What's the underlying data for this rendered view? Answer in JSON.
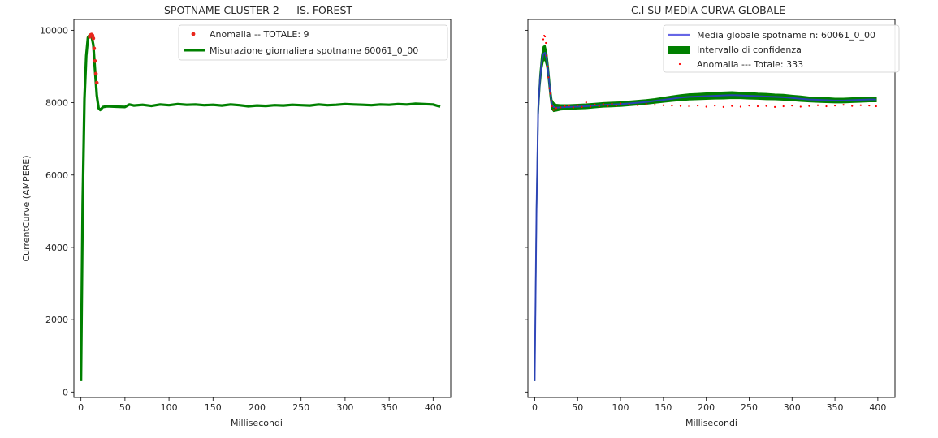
{
  "chart_data": [
    {
      "type": "line",
      "title": "SPOTNAME CLUSTER 2 --- IS. FOREST",
      "xlabel": "Millisecondi",
      "ylabel": "CurrentCurve (AMPERE)",
      "xlim": [
        -8,
        420
      ],
      "ylim": [
        -150,
        10300
      ],
      "xticks": [
        0,
        50,
        100,
        150,
        200,
        250,
        300,
        350,
        400
      ],
      "yticks": [
        0,
        2000,
        4000,
        6000,
        8000,
        10000
      ],
      "grid": false,
      "legend_position": "top-right",
      "series": [
        {
          "name": "Misurazione giornaliera spotname 60061_0_00",
          "kind": "line",
          "color": "#008000",
          "x": [
            0,
            2,
            4,
            6,
            8,
            10,
            12,
            14,
            16,
            18,
            20,
            22,
            25,
            30,
            40,
            50,
            55,
            60,
            70,
            80,
            90,
            100,
            110,
            120,
            130,
            140,
            150,
            160,
            170,
            180,
            190,
            200,
            210,
            220,
            230,
            240,
            250,
            260,
            270,
            280,
            290,
            300,
            310,
            320,
            330,
            340,
            350,
            360,
            370,
            380,
            390,
            400,
            408
          ],
          "y": [
            300,
            5200,
            8100,
            9300,
            9800,
            9870,
            9850,
            9600,
            8900,
            8200,
            7850,
            7800,
            7880,
            7900,
            7890,
            7880,
            7950,
            7920,
            7940,
            7910,
            7950,
            7930,
            7960,
            7940,
            7950,
            7930,
            7940,
            7920,
            7950,
            7930,
            7900,
            7920,
            7910,
            7930,
            7920,
            7940,
            7930,
            7920,
            7950,
            7930,
            7940,
            7960,
            7950,
            7940,
            7930,
            7950,
            7940,
            7960,
            7950,
            7970,
            7960,
            7950,
            7890
          ]
        },
        {
          "name": "Anomalia -- TOTALE: 9",
          "kind": "scatter",
          "color": "#e8261c",
          "x": [
            10,
            11,
            12,
            13,
            14,
            15,
            16,
            17,
            18
          ],
          "y": [
            9820,
            9870,
            9880,
            9860,
            9780,
            9500,
            9150,
            8800,
            8550
          ]
        }
      ]
    },
    {
      "type": "line",
      "title": "C.I SU MEDIA CURVA GLOBALE",
      "xlabel": "Millisecondi",
      "ylabel": "",
      "xlim": [
        -8,
        420
      ],
      "ylim": [
        -150,
        10300
      ],
      "xticks": [
        0,
        50,
        100,
        150,
        200,
        250,
        300,
        350,
        400
      ],
      "yticks": [
        0,
        2000,
        4000,
        6000,
        8000,
        10000
      ],
      "grid": false,
      "legend_position": "top-right",
      "series": [
        {
          "name": "Media globale spotname n: 60061_0_00",
          "kind": "line",
          "color": "#3333dd",
          "x": [
            0,
            2,
            4,
            6,
            8,
            10,
            12,
            14,
            16,
            18,
            20,
            22,
            25,
            30,
            40,
            50,
            60,
            70,
            80,
            90,
            100,
            110,
            120,
            130,
            140,
            150,
            160,
            170,
            180,
            190,
            200,
            210,
            220,
            230,
            240,
            250,
            260,
            270,
            280,
            290,
            300,
            310,
            320,
            330,
            340,
            350,
            360,
            370,
            380,
            390,
            398
          ],
          "y": [
            300,
            5000,
            7800,
            8600,
            9100,
            9350,
            9380,
            9200,
            8800,
            8300,
            7950,
            7880,
            7860,
            7870,
            7880,
            7890,
            7900,
            7920,
            7940,
            7950,
            7960,
            7980,
            8000,
            8020,
            8050,
            8080,
            8110,
            8140,
            8160,
            8170,
            8180,
            8190,
            8200,
            8210,
            8200,
            8190,
            8180,
            8170,
            8160,
            8150,
            8130,
            8110,
            8090,
            8080,
            8070,
            8060,
            8060,
            8070,
            8080,
            8090,
            8090
          ]
        },
        {
          "name": "Intervallo di confidenza",
          "kind": "band",
          "color": "#008000",
          "halfwidth": [
            0,
            120,
            150,
            170,
            190,
            200,
            200,
            190,
            170,
            150,
            130,
            120,
            90,
            70,
            60,
            60,
            60,
            60,
            60,
            60,
            60,
            60,
            60,
            60,
            60,
            65,
            70,
            75,
            80,
            80,
            85,
            85,
            90,
            90,
            85,
            85,
            80,
            80,
            75,
            75,
            70,
            70,
            65,
            65,
            65,
            60,
            60,
            60,
            60,
            60,
            60
          ]
        },
        {
          "name": "Anomalia --- Totale: 333",
          "kind": "scatter",
          "color": "#ff0000",
          "x": [
            10,
            11,
            12,
            13,
            14,
            15,
            16,
            17,
            18,
            19,
            20,
            22,
            25,
            30,
            35,
            40,
            45,
            50,
            55,
            60,
            65,
            70,
            75,
            80,
            85,
            90,
            95,
            100,
            110,
            120,
            130,
            140,
            150,
            160,
            170,
            180,
            190,
            200,
            210,
            220,
            230,
            240,
            250,
            260,
            270,
            280,
            290,
            300,
            310,
            320,
            330,
            340,
            350,
            360,
            370,
            380,
            390,
            398
          ],
          "y": [
            9750,
            9850,
            9830,
            9650,
            9300,
            9000,
            8700,
            8400,
            8250,
            8050,
            7900,
            7800,
            7850,
            7870,
            7900,
            7920,
            7870,
            7930,
            7880,
            8010,
            7890,
            7950,
            7900,
            7960,
            7910,
            7970,
            7920,
            7980,
            7950,
            7930,
            7960,
            7940,
            7930,
            7920,
            7910,
            7900,
            7920,
            7890,
            7920,
            7880,
            7910,
            7890,
            7920,
            7900,
            7910,
            7880,
            7900,
            7920,
            7890,
            7910,
            7930,
            7900,
            7920,
            7940,
            7910,
            7930,
            7920,
            7900
          ]
        }
      ]
    }
  ]
}
